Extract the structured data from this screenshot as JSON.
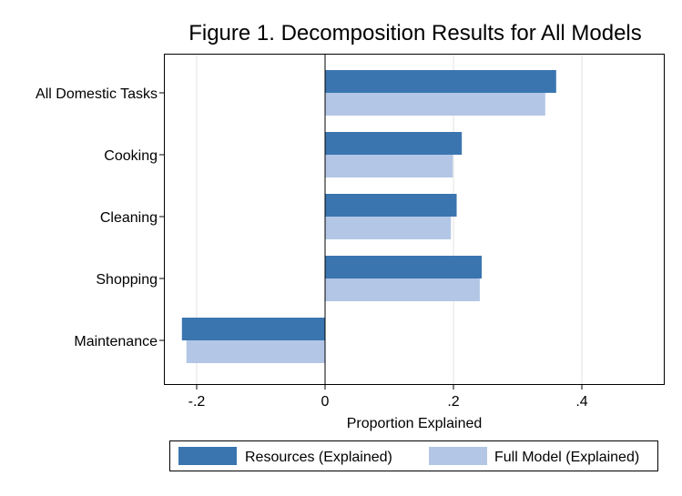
{
  "chart_data": {
    "type": "bar",
    "orientation": "horizontal",
    "title": "Figure 1. Decomposition Results for All Models",
    "xlabel": "Proportion Explained",
    "ylabel": "",
    "categories": [
      "All Domestic Tasks",
      "Cooking",
      "Cleaning",
      "Shopping",
      "Maintenance"
    ],
    "series": [
      {
        "name": "Resources (Explained)",
        "color": "#3a75b0",
        "values": [
          0.36,
          0.213,
          0.205,
          0.244,
          -0.223
        ]
      },
      {
        "name": "Full Model (Explained)",
        "color": "#b3c6e6",
        "values": [
          0.343,
          0.199,
          0.196,
          0.241,
          -0.216
        ]
      }
    ],
    "xlim": [
      -0.25,
      0.52
    ],
    "xticks": [
      -0.2,
      0,
      0.2,
      0.4
    ],
    "xtick_labels": [
      "-.2",
      "0",
      ".2",
      ".4"
    ],
    "grid": "vertical",
    "legend_position": "bottom"
  }
}
